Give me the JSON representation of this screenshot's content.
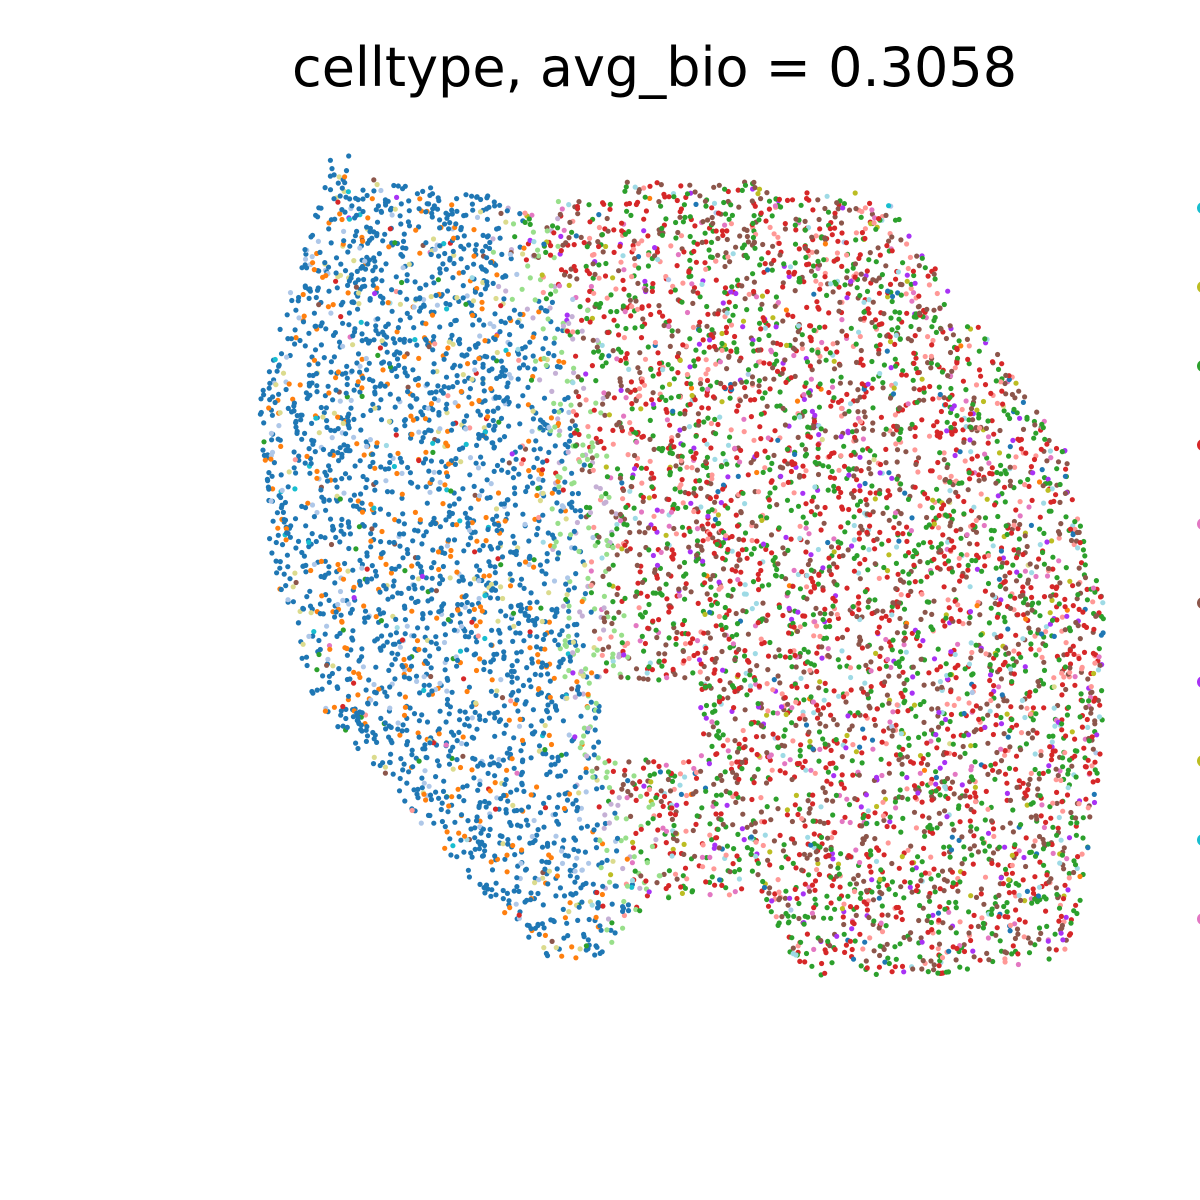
{
  "chart_data": {
    "type": "scatter",
    "title": "celltype, avg_bio = 0.3058",
    "xlabel": "",
    "ylabel": "",
    "axes_visible": false,
    "grid": false,
    "legend_position": "right (cropped at image edge)",
    "marker": "small filled dots",
    "point_count_approx": 8000,
    "series": [
      {
        "color": "#1f77b4",
        "region": "left lobe",
        "share": 0.3
      },
      {
        "color": "#ff7f0e",
        "region": "left lobe",
        "share": 0.05
      },
      {
        "color": "#aec7e8",
        "region": "left lobe boundary",
        "share": 0.03
      },
      {
        "color": "#dbdb8d",
        "region": "left lobe",
        "share": 0.02
      },
      {
        "color": "#17becf",
        "region": "left lobe",
        "share": 0.005
      },
      {
        "color": "#2ca02c",
        "region": "right lobe",
        "share": 0.16
      },
      {
        "color": "#d62728",
        "region": "right lobe",
        "share": 0.16
      },
      {
        "color": "#8c564b",
        "region": "right lobe",
        "share": 0.13
      },
      {
        "color": "#ff9896",
        "region": "right lobe",
        "share": 0.05
      },
      {
        "color": "#9edae5",
        "region": "right lobe",
        "share": 0.02
      },
      {
        "color": "#e377c2",
        "region": "right lobe",
        "share": 0.025
      },
      {
        "color": "#a832f5",
        "region": "right lobe",
        "share": 0.025
      },
      {
        "color": "#bcbd22",
        "region": "right lobe",
        "share": 0.015
      },
      {
        "color": "#98df8a",
        "region": "center strip",
        "share": 0.02
      },
      {
        "color": "#c5b0d5",
        "region": "center strip",
        "share": 0.01
      }
    ],
    "legend_markers": [
      {
        "color": "#17becf"
      },
      {
        "color": "#bcbd22"
      },
      {
        "color": "#2ca02c"
      },
      {
        "color": "#d62728"
      },
      {
        "color": "#e377c2"
      },
      {
        "color": "#8c564b"
      },
      {
        "color": "#a832f5"
      },
      {
        "color": "#bcbd22"
      },
      {
        "color": "#17becf"
      },
      {
        "color": "#e377c2"
      }
    ]
  }
}
